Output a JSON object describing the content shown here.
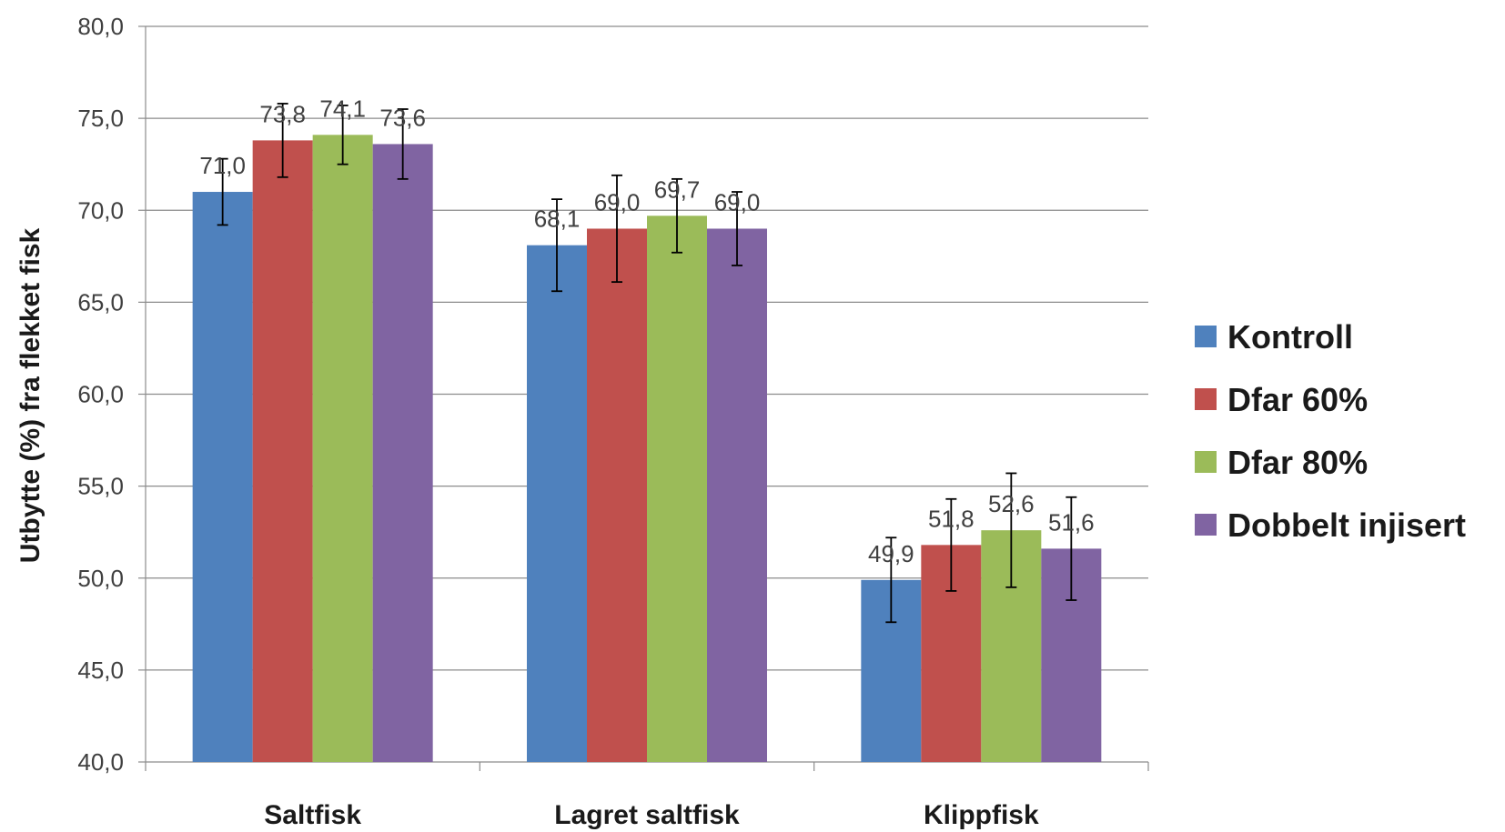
{
  "chart_data": {
    "type": "bar",
    "categories": [
      "Saltfisk",
      "Lagret saltfisk",
      "Klippfisk"
    ],
    "series": [
      {
        "name": "Kontroll",
        "color": "#4F81BD",
        "values": [
          71.0,
          68.1,
          49.9
        ],
        "labels": [
          "71,0",
          "68,1",
          "49,9"
        ],
        "errors": [
          1.8,
          2.5,
          2.3
        ]
      },
      {
        "name": "Dfar 60%",
        "color": "#C0504D",
        "values": [
          73.8,
          69.0,
          51.8
        ],
        "labels": [
          "73,8",
          "69,0",
          "51,8"
        ],
        "errors": [
          2.0,
          2.9,
          2.5
        ]
      },
      {
        "name": "Dfar 80%",
        "color": "#9BBB59",
        "values": [
          74.1,
          69.7,
          52.6
        ],
        "labels": [
          "74,1",
          "69,7",
          "52,6"
        ],
        "errors": [
          1.6,
          2.0,
          3.1
        ]
      },
      {
        "name": "Dobbelt injisert",
        "color": "#8064A2",
        "values": [
          73.6,
          69.0,
          51.6
        ],
        "labels": [
          "73,6",
          "69,0",
          "51,6"
        ],
        "errors": [
          1.9,
          2.0,
          2.8
        ]
      }
    ],
    "ylim": [
      40,
      80
    ],
    "yticks": [
      "40,0",
      "45,0",
      "50,0",
      "55,0",
      "60,0",
      "65,0",
      "70,0",
      "75,0",
      "80,0"
    ],
    "ylabel": "Utbytte (%) fra flekket fisk",
    "xlabel": "",
    "title": "",
    "grid": true,
    "legend_position": "right"
  }
}
